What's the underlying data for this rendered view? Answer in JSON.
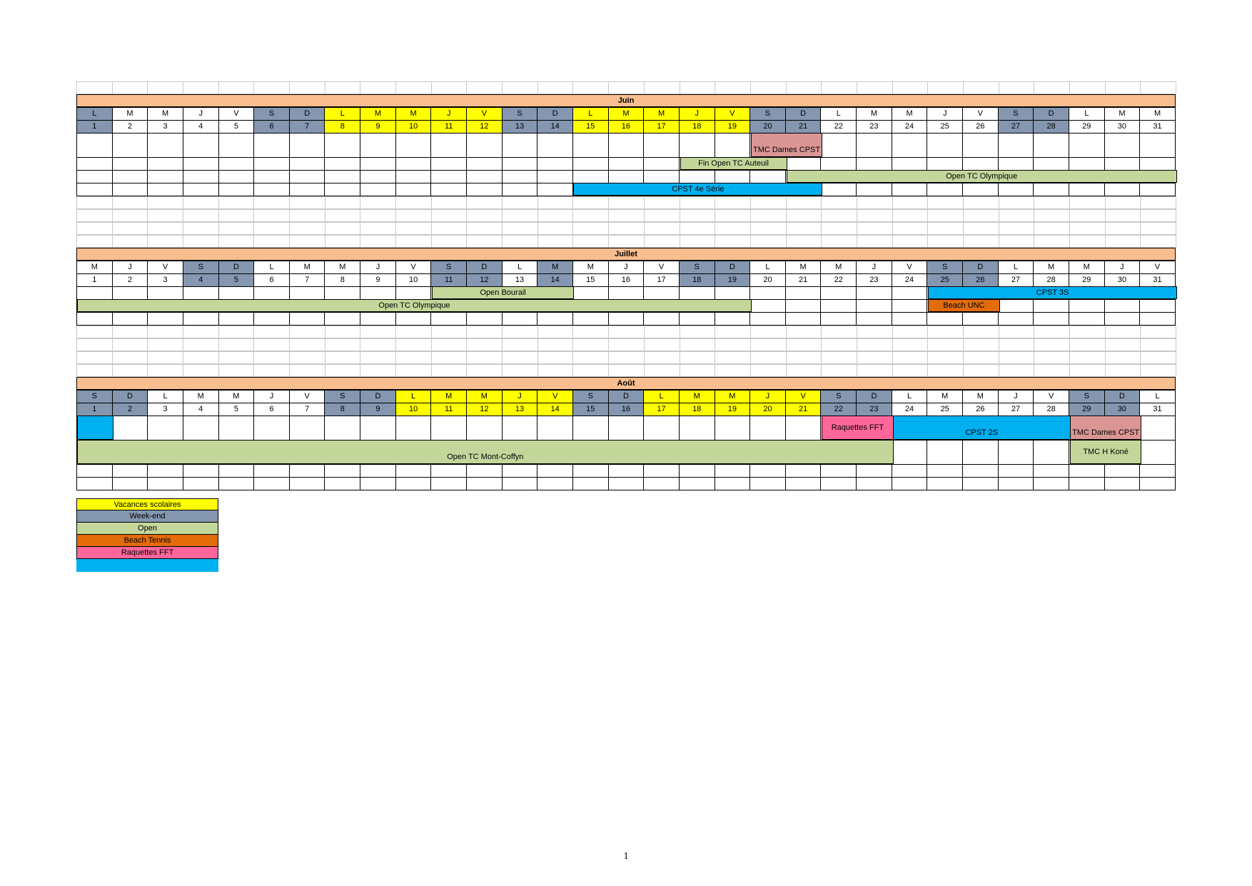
{
  "months": [
    {
      "name": "Juin",
      "days": [
        "L",
        "M",
        "M",
        "J",
        "V",
        "S",
        "D",
        "L",
        "M",
        "M",
        "J",
        "V",
        "S",
        "D",
        "L",
        "M",
        "M",
        "J",
        "V",
        "S",
        "D",
        "L",
        "M",
        "M",
        "J",
        "V",
        "S",
        "D",
        "L",
        "M",
        "M"
      ],
      "dates": [
        "1",
        "2",
        "3",
        "4",
        "5",
        "6",
        "7",
        "8",
        "9",
        "10",
        "11",
        "12",
        "13",
        "14",
        "15",
        "16",
        "17",
        "18",
        "19",
        "20",
        "21",
        "22",
        "23",
        "24",
        "25",
        "26",
        "27",
        "28",
        "29",
        "30",
        "31"
      ],
      "weekend": [
        0,
        5,
        6,
        12,
        13,
        19,
        20,
        26,
        27
      ],
      "vacances": [
        7,
        8,
        9,
        10,
        11,
        14,
        15,
        16,
        17,
        18
      ],
      "events": [
        {
          "label": "TMC Dames CPST",
          "type": "tmc"
        },
        {
          "label": "Fin Open TC Auteuil",
          "type": "open"
        },
        {
          "label": "Open TC Olympique",
          "type": "open"
        },
        {
          "label": "CPST 4e Série",
          "type": "cpst"
        }
      ]
    },
    {
      "name": "Juillet",
      "days": [
        "M",
        "J",
        "V",
        "S",
        "D",
        "L",
        "M",
        "M",
        "J",
        "V",
        "S",
        "D",
        "L",
        "M",
        "M",
        "J",
        "V",
        "S",
        "D",
        "L",
        "M",
        "M",
        "J",
        "V",
        "S",
        "D",
        "L",
        "M",
        "M",
        "J",
        "V"
      ],
      "dates": [
        "1",
        "2",
        "3",
        "4",
        "5",
        "6",
        "7",
        "8",
        "9",
        "10",
        "11",
        "12",
        "13",
        "14",
        "15",
        "16",
        "17",
        "18",
        "19",
        "20",
        "21",
        "22",
        "23",
        "24",
        "25",
        "26",
        "27",
        "28",
        "29",
        "30",
        "31"
      ],
      "weekend": [
        3,
        4,
        10,
        11,
        13,
        17,
        18,
        24,
        25
      ],
      "vacances": [],
      "events": [
        {
          "label": "Open Bourail",
          "type": "open"
        },
        {
          "label": "CPST 3S",
          "type": "cpst"
        },
        {
          "label": "Open TC Olympique",
          "type": "open"
        },
        {
          "label": "Beach UNC",
          "type": "beach"
        }
      ]
    },
    {
      "name": "Août",
      "days": [
        "S",
        "D",
        "L",
        "M",
        "M",
        "J",
        "V",
        "S",
        "D",
        "L",
        "M",
        "M",
        "J",
        "V",
        "S",
        "D",
        "L",
        "M",
        "M",
        "J",
        "V",
        "S",
        "D",
        "L",
        "M",
        "M",
        "J",
        "V",
        "S",
        "D",
        "L"
      ],
      "dates": [
        "1",
        "2",
        "3",
        "4",
        "5",
        "6",
        "7",
        "8",
        "9",
        "10",
        "11",
        "12",
        "13",
        "14",
        "15",
        "16",
        "17",
        "18",
        "19",
        "20",
        "21",
        "22",
        "23",
        "24",
        "25",
        "26",
        "27",
        "28",
        "29",
        "30",
        "31"
      ],
      "weekend": [
        0,
        1,
        7,
        8,
        14,
        15,
        21,
        22,
        28,
        29
      ],
      "vacances": [
        9,
        10,
        11,
        12,
        13,
        16,
        17,
        18,
        19,
        20
      ],
      "events": [
        {
          "label": "Raquettes FFT",
          "type": "raq"
        },
        {
          "label": "CPST 2S",
          "type": "cpst"
        },
        {
          "label": "TMC Dames CPST",
          "type": "tmc"
        },
        {
          "label": "Open TC Mont-Coffyn",
          "type": "open"
        },
        {
          "label": "TMC H Koné",
          "type": "open"
        }
      ]
    }
  ],
  "legend": [
    {
      "label": "Vacances scolaires",
      "type": "vac"
    },
    {
      "label": "Week-end",
      "type": "we"
    },
    {
      "label": "Open",
      "type": "open"
    },
    {
      "label": "Beach Tennis",
      "type": "beach"
    },
    {
      "label": "Raquettes FFT",
      "type": "raq"
    },
    {
      "label": "",
      "type": "cpst"
    }
  ],
  "page_number": "1",
  "colors": {
    "month_header": "#f8be8f",
    "weekend": "#8496b0",
    "vacances": "#ffff00",
    "open": "#c4d79b",
    "cpst": "#00b0f0",
    "tmc": "#da9694",
    "raquettes": "#ff6699",
    "beach": "#e26b0a"
  }
}
